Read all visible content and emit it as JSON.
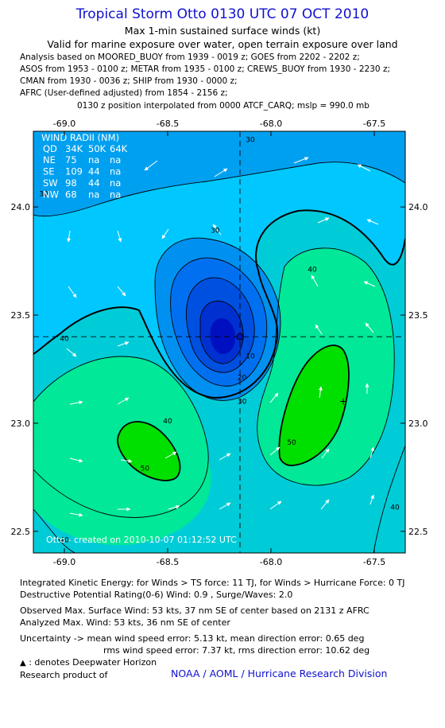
{
  "header": {
    "title": "Tropical Storm Otto 0130 UTC 07 OCT 2010",
    "subtitle1": "Max 1-min sustained surface winds (kt)",
    "subtitle2": "Valid for marine exposure over water, open terrain exposure over land"
  },
  "analysis": {
    "lines": [
      "Analysis based on MOORED_BUOY from 1939 - 0019 z; GOES from 2202 - 2202 z;",
      "ASOS from 1953 - 0100 z; METAR from 1935 - 0100 z; CREWS_BUOY from 1930 - 2230 z;",
      "CMAN from 1930 - 0036 z; SHIP from 1930 - 0000 z;",
      "AFRC (User-defined adjusted) from 1854 - 2156 z;"
    ],
    "position_note": "0130 z position interpolated from 0000 ATCF_CARQ; mslp = 990.0 mb"
  },
  "wind_radii": {
    "title": "WIND RADII (NM)",
    "header": [
      "QD",
      "34K",
      "50K",
      "64K"
    ],
    "rows": [
      [
        "NE",
        "75",
        "na",
        "na"
      ],
      [
        "SE",
        "109",
        "44",
        "na"
      ],
      [
        "SW",
        "98",
        "44",
        "na"
      ],
      [
        "NW",
        "68",
        "na",
        "na"
      ]
    ]
  },
  "chart_data": {
    "type": "contour",
    "xlim": [
      -69.15,
      -67.35
    ],
    "ylim": [
      22.4,
      24.35
    ],
    "x_ticks": [
      -69.0,
      -68.5,
      -68.0,
      -67.5
    ],
    "x_tick_labels": [
      "-69.0",
      "-68.5",
      "-68.0",
      "-67.5"
    ],
    "y_ticks": [
      22.5,
      23.0,
      23.5,
      24.0
    ],
    "y_tick_labels": [
      "22.5",
      "23.0",
      "23.5",
      "24.0"
    ],
    "center": {
      "lon": -68.15,
      "lat": 23.4
    },
    "max_wind_marker": {
      "lon": -67.65,
      "lat": 23.1
    },
    "contour_labels": [
      {
        "text": "30",
        "lon": -68.1,
        "lat": 24.3
      },
      {
        "text": "30",
        "lon": -69.1,
        "lat": 24.05
      },
      {
        "text": "30",
        "lon": -68.27,
        "lat": 23.88
      },
      {
        "text": "40",
        "lon": -67.8,
        "lat": 23.7
      },
      {
        "text": "40",
        "lon": -69.0,
        "lat": 23.38
      },
      {
        "text": "10",
        "lon": -68.1,
        "lat": 23.3
      },
      {
        "text": "20",
        "lon": -68.14,
        "lat": 23.2
      },
      {
        "text": "30",
        "lon": -68.14,
        "lat": 23.09
      },
      {
        "text": "40",
        "lon": -68.5,
        "lat": 23.0
      },
      {
        "text": "50",
        "lon": -68.61,
        "lat": 22.78
      },
      {
        "text": "50",
        "lon": -67.9,
        "lat": 22.9
      },
      {
        "text": "40",
        "lon": -67.4,
        "lat": 22.6
      },
      {
        "text": "40",
        "lon": -69.0,
        "lat": 22.45
      }
    ],
    "credit": "Otto - created on 2010-10-07 01:12:52 UTC"
  },
  "footer": {
    "ike": "Integrated Kinetic Energy:  for Winds > TS force: 11 TJ,  for Winds > Hurricane Force: 0 TJ",
    "dpr": "Destructive Potential Rating(0-6)   Wind: 0.9 , Surge/Waves: 2.0",
    "observed": "Observed Max. Surface Wind: 53 kts, 37 nm SE of center based on 2131 z AFRC",
    "analyzed": "Analyzed Max. Wind: 53 kts, 36 nm SE of center",
    "uncertainty1": "Uncertainty -> mean wind speed error: 5.13 kt,   mean direction error: 0.65 deg",
    "uncertainty2": "rms wind speed error: 7.37 kt,   rms direction error: 10.62 deg",
    "deepwater": " : denotes Deepwater Horizon",
    "research": "Research product of",
    "noaa": "NOAA / AOML / Hurricane Research Division"
  }
}
